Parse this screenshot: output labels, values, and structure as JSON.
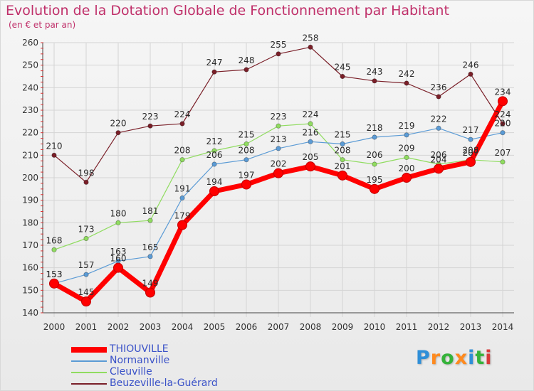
{
  "title": "Evolution de la Dotation Globale de Fonctionnement par Habitant",
  "subtitle": "(en € et par an)",
  "logo": {
    "text": "Proxiti",
    "letter_colors": [
      "#2f8fd8",
      "#ff8a1e",
      "#35b33a",
      "#ff8a1e",
      "#2f8fd8",
      "#35b33a",
      "#d83a3a"
    ]
  },
  "chart_data": {
    "type": "line",
    "x": [
      "2000",
      "2001",
      "2002",
      "2003",
      "2004",
      "2005",
      "2006",
      "2007",
      "2008",
      "2009",
      "2010",
      "2011",
      "2012",
      "2013",
      "2014"
    ],
    "ylim": [
      140,
      260
    ],
    "yticks": [
      140,
      150,
      160,
      170,
      180,
      190,
      200,
      210,
      220,
      230,
      240,
      250,
      260
    ],
    "ytick_labels": [
      "140",
      "150",
      "160",
      "170",
      "180",
      "190",
      "200",
      "210",
      "220",
      "230",
      "240",
      "250",
      "260"
    ],
    "grid": true,
    "legend_position": "bottom-left",
    "series": [
      {
        "name": "Beuzeville-la-Guérard",
        "color": "#7a1f28",
        "width": 1.2,
        "values": [
          210,
          198,
          220,
          223,
          224,
          247,
          248,
          255,
          258,
          245,
          243,
          242,
          236,
          246,
          224
        ]
      },
      {
        "name": "Cleuville",
        "color": "#90dc60",
        "width": 1.2,
        "values": [
          168,
          173,
          180,
          181,
          208,
          212,
          215,
          223,
          224,
          208,
          206,
          209,
          206,
          208,
          207
        ]
      },
      {
        "name": "Normanville",
        "color": "#5b9bd5",
        "width": 1.2,
        "values": [
          153,
          157,
          163,
          165,
          191,
          206,
          208,
          213,
          216,
          215,
          218,
          219,
          222,
          217,
          220
        ]
      },
      {
        "name": "THIOUVILLE",
        "color": "#ff0000",
        "width": 7,
        "values": [
          153,
          145,
          160,
          149,
          179,
          194,
          197,
          202,
          205,
          201,
          195,
          200,
          204,
          207,
          234
        ]
      }
    ],
    "legend_order": [
      "THIOUVILLE",
      "Normanville",
      "Cleuville",
      "Beuzeville-la-Guérard"
    ]
  }
}
